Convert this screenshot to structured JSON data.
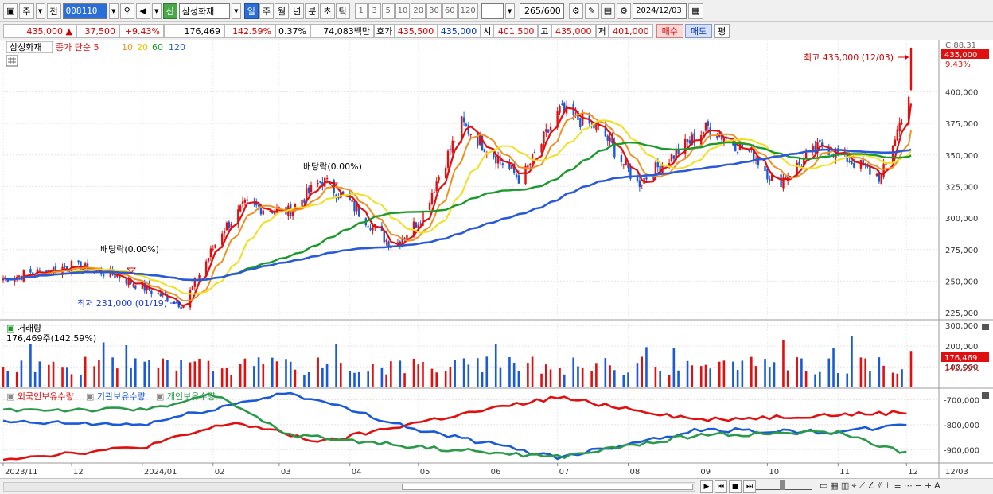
{
  "toolbar": {
    "market": "주",
    "prev": "전",
    "code": "008110",
    "tag": "신",
    "name": "삼성화재",
    "periods": [
      "일",
      "주",
      "월",
      "년",
      "분",
      "초",
      "틱"
    ],
    "active_period": "일",
    "intervals": [
      "1",
      "3",
      "5",
      "10",
      "20",
      "30",
      "60",
      "120"
    ],
    "count": "265",
    "count_max": "/600",
    "date": "2024/12/03"
  },
  "info": {
    "price": "435,000",
    "up_mark": "▲",
    "change": "37,500",
    "change_pct": "+9.43%",
    "volume": "176,469",
    "volume_ratio": "142.59%",
    "turnover": "0.37%",
    "amount": "74,083백만",
    "quote_label": "호가",
    "ask": "435,500",
    "bid": "435,000",
    "open_label": "시",
    "open": "401,500",
    "high_label": "고",
    "high": "435,000",
    "low_label": "저",
    "low": "401,000",
    "buy": "매수",
    "sell": "매도",
    "eval": "평"
  },
  "colors": {
    "up": "#e01010",
    "down": "#1a5ad8",
    "ma5": "#e01010",
    "ma10": "#f09020",
    "ma20": "#f0e020",
    "ma60": "#1a9a2a",
    "ma120": "#2a5ad8",
    "foreign": "#e01010",
    "institution": "#1a5ad8",
    "individual": "#2a9a4a"
  },
  "price_panel": {
    "stock_label": "삼성화재",
    "legend_prefix": "종가 단순",
    "ma_periods": [
      "5",
      "10",
      "20",
      "60",
      "120"
    ],
    "corner": "C:88.31",
    "last_price": "435,000",
    "last_pct": "9.43%",
    "annotations": {
      "high": "최고 435,000 (12/03)",
      "low": "최저 231,000 (01/19)",
      "dividend1": "배당락(0.00%)",
      "dividend2": "배당락(0.00%)"
    },
    "y_ticks": [
      "400,000",
      "375,000",
      "350,000",
      "325,000",
      "300,000",
      "275,000",
      "250,000",
      "225,000"
    ]
  },
  "volume_panel": {
    "title": "거래량",
    "summary": "176,469주(142.59%)",
    "y_ticks": [
      "300,000",
      "200,000",
      "100,000"
    ],
    "last_value": "176,469",
    "last_pct": "142.59%"
  },
  "holder_panel": {
    "legend": [
      "외국인보유수량",
      "기관보유수량",
      "개인보유수량"
    ],
    "y_ticks": [
      "-700,000",
      "-800,000",
      "-900,000"
    ]
  },
  "x_axis": {
    "labels": [
      "2023/11",
      "12",
      "2024/01",
      "02",
      "03",
      "04",
      "05",
      "06",
      "07",
      "08",
      "09",
      "10",
      "11",
      "12"
    ],
    "right_label": "12/03"
  },
  "chart_data": [
    {
      "type": "candlestick",
      "title": "삼성화재",
      "ylim": [
        220000,
        440000
      ],
      "anchors": [
        {
          "x": "2023-11-01",
          "close": 252000
        },
        {
          "x": "2023-12-01",
          "close": 262000
        },
        {
          "x": "2023-12-20",
          "close": 255000
        },
        {
          "x": "2024-01-19",
          "close": 231000
        },
        {
          "x": "2024-02-05",
          "close": 290000
        },
        {
          "x": "2024-02-15",
          "close": 310000
        },
        {
          "x": "2024-03-05",
          "close": 305000
        },
        {
          "x": "2024-03-20",
          "close": 330000
        },
        {
          "x": "2024-04-01",
          "close": 312000
        },
        {
          "x": "2024-04-20",
          "close": 277000
        },
        {
          "x": "2024-05-02",
          "close": 300000
        },
        {
          "x": "2024-05-20",
          "close": 375000
        },
        {
          "x": "2024-06-15",
          "close": 330000
        },
        {
          "x": "2024-07-02",
          "close": 385000
        },
        {
          "x": "2024-07-20",
          "close": 370000
        },
        {
          "x": "2024-08-05",
          "close": 327000
        },
        {
          "x": "2024-09-05",
          "close": 372000
        },
        {
          "x": "2024-09-25",
          "close": 350000
        },
        {
          "x": "2024-10-05",
          "close": 327000
        },
        {
          "x": "2024-10-25",
          "close": 358000
        },
        {
          "x": "2024-11-20",
          "close": 332000
        },
        {
          "x": "2024-11-28",
          "close": 375000
        },
        {
          "x": "2024-12-02",
          "close": 397500
        },
        {
          "x": "2024-12-03",
          "close": 435000
        }
      ],
      "moving_averages": [
        5,
        10,
        20,
        60,
        120
      ]
    },
    {
      "type": "bar",
      "title": "거래량",
      "ylim": [
        0,
        320000
      ],
      "last": {
        "x": "2024-12-03",
        "value": 176469
      }
    },
    {
      "type": "line",
      "series": [
        {
          "name": "외국인보유수량",
          "points": [
            {
              "x": "2023-11-01",
              "y": -935000
            },
            {
              "x": "2024-01-01",
              "y": -890000
            },
            {
              "x": "2024-02-10",
              "y": -790000
            },
            {
              "x": "2024-03-20",
              "y": -870000
            },
            {
              "x": "2024-05-01",
              "y": -790000
            },
            {
              "x": "2024-07-01",
              "y": -690000
            },
            {
              "x": "2024-09-01",
              "y": -780000
            },
            {
              "x": "2024-11-01",
              "y": -760000
            },
            {
              "x": "2024-12-03",
              "y": -750000
            }
          ]
        },
        {
          "name": "기관보유수량",
          "points": [
            {
              "x": "2023-11-01",
              "y": -790000
            },
            {
              "x": "2024-01-01",
              "y": -800000
            },
            {
              "x": "2024-03-05",
              "y": -670000
            },
            {
              "x": "2024-05-01",
              "y": -820000
            },
            {
              "x": "2024-07-01",
              "y": -930000
            },
            {
              "x": "2024-09-01",
              "y": -820000
            },
            {
              "x": "2024-11-01",
              "y": -830000
            },
            {
              "x": "2024-12-03",
              "y": -800000
            }
          ]
        },
        {
          "name": "개인보유수량",
          "points": [
            {
              "x": "2023-11-01",
              "y": -740000
            },
            {
              "x": "2024-01-01",
              "y": -740000
            },
            {
              "x": "2024-02-01",
              "y": -680000
            },
            {
              "x": "2024-03-05",
              "y": -840000
            },
            {
              "x": "2024-05-15",
              "y": -900000
            },
            {
              "x": "2024-07-01",
              "y": -930000
            },
            {
              "x": "2024-09-01",
              "y": -840000
            },
            {
              "x": "2024-11-01",
              "y": -830000
            },
            {
              "x": "2024-12-03",
              "y": -920000
            }
          ]
        }
      ]
    }
  ]
}
